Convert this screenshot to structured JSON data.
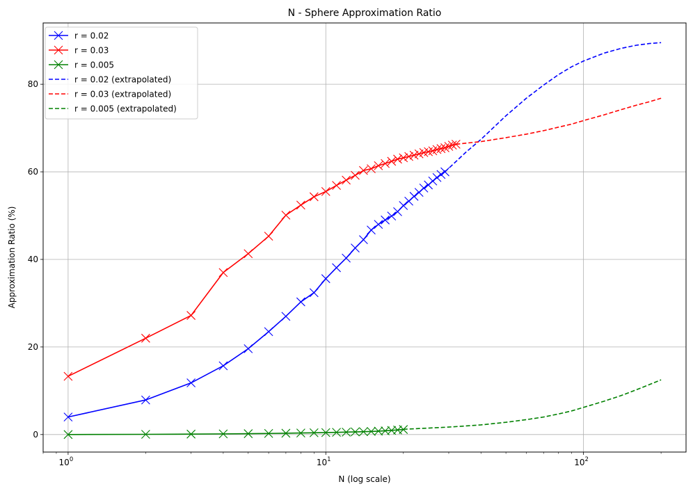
{
  "chart_data": {
    "type": "line",
    "title": "N - Sphere Approximation Ratio",
    "xlabel": "N (log scale)",
    "ylabel": "Approximation Ratio (%)",
    "xscale": "log",
    "xlim": [
      0.8,
      250
    ],
    "ylim": [
      -4,
      94
    ],
    "grid": true,
    "legend_position": "top-left",
    "x_tick_labels": [
      {
        "value": 1,
        "base": "10",
        "exp": "0"
      },
      {
        "value": 10,
        "base": "10",
        "exp": "1"
      },
      {
        "value": 100,
        "base": "10",
        "exp": "2"
      }
    ],
    "y_ticks": [
      {
        "value": 0,
        "label": "0"
      },
      {
        "value": 20,
        "label": "20"
      },
      {
        "value": 40,
        "label": "40"
      },
      {
        "value": 60,
        "label": "60"
      },
      {
        "value": 80,
        "label": "80"
      }
    ],
    "series": [
      {
        "name": "r = 0.02",
        "color": "#0000ff",
        "style": "solid",
        "marker": "x",
        "x": [
          1,
          2,
          3,
          4,
          5,
          6,
          7,
          8,
          9,
          10,
          11,
          12,
          13,
          14,
          15,
          16,
          17,
          18,
          19,
          20,
          21,
          22,
          23,
          24,
          25,
          26,
          27,
          28,
          29
        ],
        "y": [
          4.0,
          7.9,
          11.8,
          15.7,
          19.6,
          23.5,
          27.0,
          30.3,
          32.4,
          35.6,
          38.1,
          40.3,
          42.6,
          44.5,
          46.7,
          48.0,
          49.0,
          49.9,
          50.9,
          52.3,
          53.3,
          54.4,
          55.3,
          56.3,
          57.0,
          57.9,
          58.7,
          59.4,
          60.0
        ]
      },
      {
        "name": "r = 0.03",
        "color": "#ff0000",
        "style": "solid",
        "marker": "x",
        "x": [
          1,
          2,
          3,
          4,
          5,
          6,
          7,
          8,
          9,
          10,
          11,
          12,
          13,
          14,
          15,
          16,
          17,
          18,
          19,
          20,
          21,
          22,
          23,
          24,
          25,
          26,
          27,
          28,
          29,
          30,
          31,
          32
        ],
        "y": [
          13.3,
          22.0,
          27.2,
          37.0,
          41.3,
          45.3,
          50.1,
          52.4,
          54.3,
          55.5,
          56.9,
          58.1,
          59.2,
          60.3,
          60.7,
          61.4,
          61.9,
          62.4,
          62.9,
          63.2,
          63.5,
          63.8,
          64.1,
          64.4,
          64.6,
          64.8,
          65.1,
          65.3,
          65.5,
          65.8,
          66.1,
          66.3
        ]
      },
      {
        "name": "r = 0.005",
        "color": "#008000",
        "style": "solid",
        "marker": "x",
        "x": [
          1,
          2,
          3,
          4,
          5,
          6,
          7,
          8,
          9,
          10,
          11,
          12,
          13,
          14,
          15,
          16,
          17,
          18,
          19,
          20
        ],
        "y": [
          0.0,
          0.05,
          0.1,
          0.15,
          0.2,
          0.25,
          0.3,
          0.35,
          0.4,
          0.45,
          0.5,
          0.55,
          0.6,
          0.65,
          0.7,
          0.78,
          0.85,
          0.95,
          1.05,
          1.15
        ]
      },
      {
        "name": "r = 0.02 (extrapolated)",
        "color": "#0000ff",
        "style": "dashed",
        "marker": "none",
        "x": [
          29,
          35,
          40,
          50,
          60,
          70,
          80,
          90,
          100,
          120,
          140,
          160,
          180,
          200
        ],
        "y": [
          60.0,
          64.5,
          67.4,
          72.8,
          76.8,
          79.8,
          82.2,
          84.0,
          85.3,
          87.1,
          88.2,
          88.9,
          89.3,
          89.5
        ]
      },
      {
        "name": "r = 0.03 (extrapolated)",
        "color": "#ff0000",
        "style": "dashed",
        "marker": "none",
        "x": [
          32,
          40,
          50,
          60,
          70,
          80,
          90,
          100,
          120,
          140,
          160,
          180,
          200
        ],
        "y": [
          66.3,
          66.9,
          67.8,
          68.6,
          69.4,
          70.2,
          70.9,
          71.7,
          73.0,
          74.2,
          75.2,
          76.0,
          76.8
        ]
      },
      {
        "name": "r = 0.005 (extrapolated)",
        "color": "#008000",
        "style": "dashed",
        "marker": "none",
        "x": [
          20,
          30,
          40,
          50,
          60,
          70,
          80,
          90,
          100,
          120,
          140,
          160,
          180,
          200
        ],
        "y": [
          1.2,
          1.7,
          2.2,
          2.8,
          3.4,
          4.0,
          4.7,
          5.4,
          6.2,
          7.6,
          8.9,
          10.2,
          11.4,
          12.5
        ]
      }
    ]
  }
}
